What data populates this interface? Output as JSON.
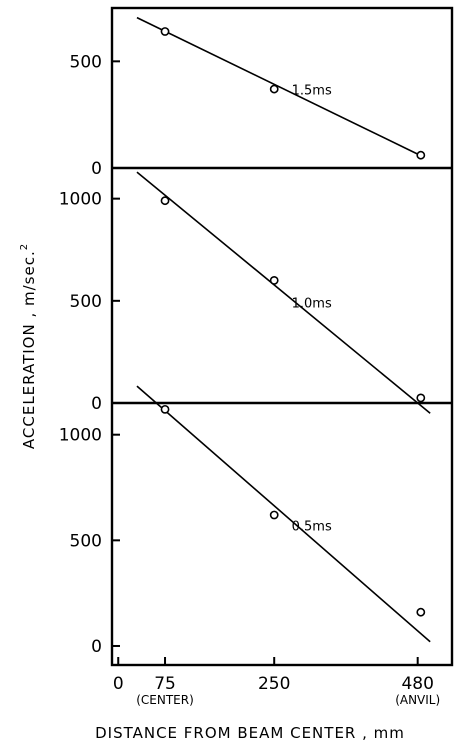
{
  "chart_data": [
    {
      "type": "scatter",
      "panel": "top",
      "series": [
        {
          "name": "1.5ms",
          "points": [
            [
              75,
              640
            ],
            [
              250,
              370
            ],
            [
              485,
              60
            ]
          ],
          "fit_line": [
            [
              30,
              705
            ],
            [
              480,
              65
            ]
          ]
        }
      ],
      "y_ticks": [
        0,
        500
      ],
      "ylim": [
        0,
        750
      ]
    },
    {
      "type": "scatter",
      "panel": "middle",
      "series": [
        {
          "name": "1.0ms",
          "points": [
            [
              75,
              990
            ],
            [
              250,
              600
            ],
            [
              485,
              25
            ]
          ],
          "fit_line": [
            [
              30,
              1130
            ],
            [
              500,
              -50
            ]
          ]
        }
      ],
      "y_ticks": [
        0,
        500,
        1000
      ],
      "ylim": [
        0,
        1150
      ]
    },
    {
      "type": "scatter",
      "panel": "bottom",
      "series": [
        {
          "name": "0.5ms",
          "points": [
            [
              75,
              1120
            ],
            [
              250,
              620
            ],
            [
              485,
              160
            ]
          ],
          "fit_line": [
            [
              30,
              1230
            ],
            [
              500,
              20
            ]
          ]
        }
      ],
      "y_ticks": [
        0,
        500,
        1000
      ],
      "ylim": [
        -90,
        1150
      ]
    }
  ],
  "x_ticks": [
    {
      "value": 0,
      "label": "0",
      "sub": ""
    },
    {
      "value": 75,
      "label": "75",
      "sub": "(CENTER)"
    },
    {
      "value": 250,
      "label": "250",
      "sub": ""
    },
    {
      "value": 480,
      "label": "480",
      "sub": "(ANVIL)"
    }
  ],
  "xlim": [
    -10,
    535
  ],
  "xlabel": "DISTANCE FROM BEAM CENTER , mm",
  "ylabel": "ACCELERATION , m/sec.",
  "ylabel_superscript": "2"
}
